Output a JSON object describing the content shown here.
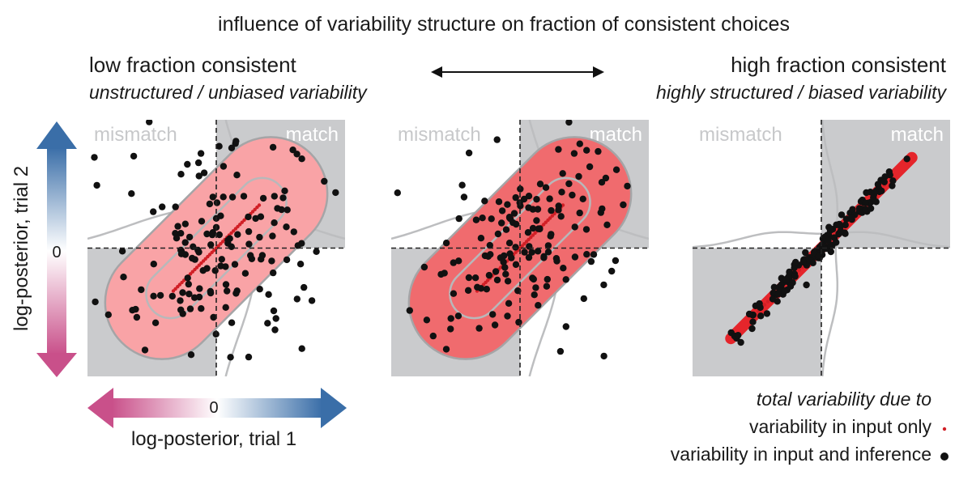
{
  "title": "influence of variability structure on fraction of consistent choices",
  "left_heading": "low fraction consistent",
  "left_subheading": "unstructured / unbiased variability",
  "right_heading": "high fraction consistent",
  "right_subheading": "highly structured / biased variability",
  "quadrant_mismatch": "mismatch",
  "quadrant_match": "match",
  "y_axis_label": "log-posterior, trial 2",
  "x_axis_label": "log-posterior, trial 1",
  "zero_label": "0",
  "legend": {
    "title": "total variability due to",
    "input_only": "variability in input only",
    "input_and_inference": "variability in input and inference"
  },
  "colors": {
    "quadrant_gray": "#cacbcd",
    "cloud_light": "#f9a3a6",
    "cloud_mid": "#f06b6e",
    "cloud_dark": "#e5252b",
    "dots": "#111111",
    "red_dots": "#d11f26",
    "arrow_blue": "#3a6ea8",
    "arrow_pink": "#c9508a"
  },
  "panels": [
    {
      "name": "unstructured",
      "cloud_fill": "#f9a3a6",
      "points": 150,
      "spread_along": 0.42,
      "spread_across": 0.16
    },
    {
      "name": "intermediate",
      "cloud_fill": "#f06b6e",
      "points": 150,
      "spread_along": 0.42,
      "spread_across": 0.13
    },
    {
      "name": "highly-structured",
      "cloud_fill": "#e5252b",
      "points": 150,
      "spread_along": 0.45,
      "spread_across": 0.015
    }
  ]
}
